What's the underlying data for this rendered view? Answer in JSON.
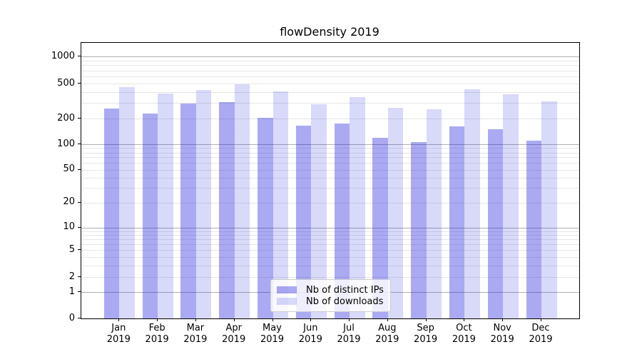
{
  "chart_data": {
    "type": "bar",
    "title": "flowDensity 2019",
    "categories": [
      "Jan 2019",
      "Feb 2019",
      "Mar 2019",
      "Apr 2019",
      "May 2019",
      "Jun 2019",
      "Jul 2019",
      "Aug 2019",
      "Sep 2019",
      "Oct 2019",
      "Nov 2019",
      "Dec 2019"
    ],
    "series": [
      {
        "name": "Nb of distinct IPs",
        "color": "rgba(20,20,220,0.36)",
        "values": [
          260,
          230,
          295,
          305,
          204,
          165,
          175,
          120,
          107,
          163,
          150,
          111
        ]
      },
      {
        "name": "Nb of downloads",
        "color": "rgba(20,20,220,0.16)",
        "values": [
          455,
          385,
          425,
          490,
          410,
          290,
          350,
          265,
          253,
          433,
          378,
          315
        ]
      }
    ],
    "xlabel": "",
    "ylabel": "",
    "yscale": "asinh-log",
    "yticks": [
      0,
      1,
      2,
      5,
      10,
      20,
      50,
      100,
      200,
      500,
      1000
    ],
    "ylim": [
      0,
      1425
    ],
    "grid": true,
    "legend_position": "lower center",
    "colors": {
      "bar_distinct_ips_rendered": "#aaaaf0",
      "bar_downloads_rendered": "#d9d9f8",
      "major_grid": "#b0b0b0",
      "minor_grid": "#e6e6e6",
      "axis": "#000000"
    }
  }
}
